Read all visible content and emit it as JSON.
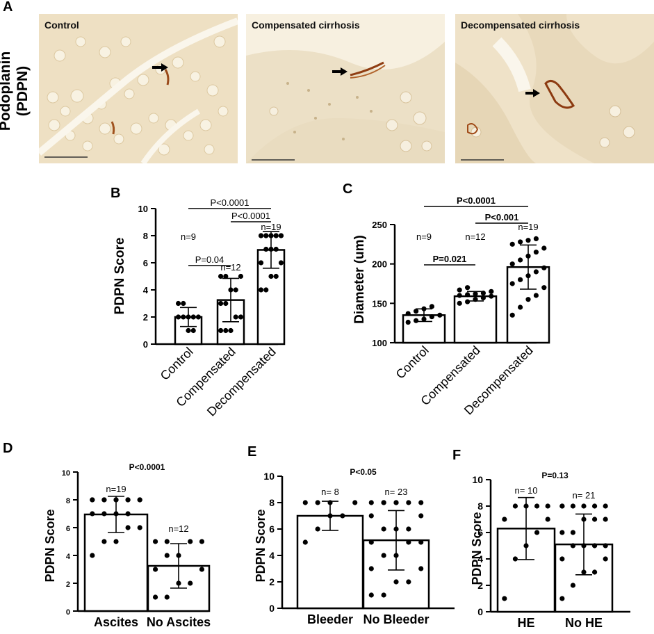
{
  "figure": {
    "panel_letters": {
      "A": "A",
      "B": "B",
      "C": "C",
      "D": "D",
      "E": "E",
      "F": "F"
    },
    "row_label_line1": "Podoplanin",
    "row_label_line2": "(PDPN)",
    "micrographs": [
      {
        "label": "Control",
        "arrow": "right-arrow-icon"
      },
      {
        "label": "Compensated cirrhosis",
        "arrow": "right-arrow-icon"
      },
      {
        "label": "Decompensated cirrhosis",
        "arrow": "right-arrow-icon"
      }
    ]
  },
  "chart_data": [
    {
      "panel": "B",
      "type": "bar",
      "categories": [
        "Control",
        "Compensated",
        "Decompensated"
      ],
      "values": [
        2.0,
        3.25,
        6.95
      ],
      "sd": [
        0.7,
        1.6,
        1.35
      ],
      "ylabel": "PDPN Score",
      "ylim": [
        0,
        10
      ],
      "yticks": [
        0,
        2,
        4,
        6,
        8,
        10
      ],
      "n_labels": [
        "n=9",
        "n=12",
        "n=19"
      ],
      "points": [
        [
          2,
          2,
          2,
          2,
          2,
          3,
          3,
          1,
          1
        ],
        [
          1,
          1,
          1,
          2,
          2,
          3,
          3,
          4,
          4,
          5,
          5,
          5
        ],
        [
          4,
          4,
          5,
          5,
          6,
          6,
          7,
          7,
          7,
          8,
          8,
          8,
          8,
          8,
          8,
          8,
          8,
          8,
          8
        ]
      ],
      "comparisons": [
        {
          "from": 0,
          "to": 1,
          "label": "P=0.04"
        },
        {
          "from": 1,
          "to": 2,
          "label": "P<0.0001"
        },
        {
          "from": 0,
          "to": 2,
          "label": "P<0.0001"
        }
      ],
      "bold_p": false,
      "rotate_xticks": true
    },
    {
      "panel": "C",
      "type": "bar",
      "categories": [
        "Control",
        "Compensated",
        "Decompensated"
      ],
      "values": [
        135,
        159,
        196
      ],
      "sd": [
        8,
        6,
        28
      ],
      "ylabel": "Diameter (um)",
      "ylim": [
        100,
        250
      ],
      "yticks": [
        100,
        150,
        200,
        250
      ],
      "n_labels": [
        "n=9",
        "n=12",
        "n=19"
      ],
      "points": [
        [
          126,
          128,
          130,
          133,
          135,
          137,
          140,
          143,
          146
        ],
        [
          150,
          152,
          155,
          157,
          159,
          160,
          161,
          162,
          163,
          165,
          167,
          170
        ],
        [
          135,
          145,
          155,
          160,
          170,
          175,
          180,
          185,
          190,
          195,
          200,
          205,
          210,
          215,
          220,
          225,
          228,
          230,
          232
        ]
      ],
      "comparisons": [
        {
          "from": 0,
          "to": 1,
          "label": "P=0.021"
        },
        {
          "from": 1,
          "to": 2,
          "label": "P<0.001"
        },
        {
          "from": 0,
          "to": 2,
          "label": "P<0.0001"
        }
      ],
      "bold_p": true,
      "rotate_xticks": true
    },
    {
      "panel": "D",
      "type": "bar",
      "categories": [
        "Ascites",
        "No Ascites"
      ],
      "values": [
        6.95,
        3.25
      ],
      "sd": [
        1.3,
        1.6
      ],
      "ylabel": "PDPN Score",
      "ylim": [
        0,
        10
      ],
      "yticks": [
        0,
        2,
        4,
        6,
        8,
        10
      ],
      "n_labels": [
        "n=19",
        "n=12"
      ],
      "points": [
        [
          4,
          5,
          5,
          6,
          6,
          7,
          7,
          7,
          7,
          8,
          8,
          8,
          8,
          8,
          8,
          8,
          8,
          8,
          8
        ],
        [
          1,
          1,
          2,
          2,
          3,
          3,
          4,
          4,
          5,
          5,
          5,
          5
        ]
      ],
      "p_value": "P<0.0001",
      "bold_p": true,
      "rotate_xticks": false
    },
    {
      "panel": "E",
      "type": "bar",
      "categories": [
        "Bleeder",
        "No Bleeder"
      ],
      "values": [
        7.0,
        5.15
      ],
      "sd": [
        1.1,
        2.25
      ],
      "ylabel": "PDPN Score",
      "ylim": [
        0,
        10
      ],
      "yticks": [
        0,
        2,
        4,
        6,
        8,
        10
      ],
      "n_labels": [
        "n= 8",
        "n= 23"
      ],
      "points": [
        [
          5,
          6,
          7,
          7,
          8,
          8,
          8,
          8
        ],
        [
          1,
          1,
          2,
          2,
          3,
          3,
          4,
          4,
          5,
          5,
          5,
          6,
          6,
          6,
          7,
          7,
          8,
          8,
          8,
          8,
          8,
          8,
          8
        ]
      ],
      "p_value": "P<0.05",
      "bold_p": true,
      "rotate_xticks": false
    },
    {
      "panel": "F",
      "type": "bar",
      "categories": [
        "HE",
        "No HE"
      ],
      "values": [
        6.3,
        5.1
      ],
      "sd": [
        2.35,
        2.3
      ],
      "ylabel": "PDPN Score",
      "ylim": [
        0,
        10
      ],
      "yticks": [
        0,
        2,
        4,
        6,
        8,
        10
      ],
      "n_labels": [
        "n= 10",
        "n= 21"
      ],
      "points": [
        [
          1,
          4,
          5,
          6,
          7,
          7,
          8,
          8,
          8,
          8
        ],
        [
          1,
          2,
          3,
          3,
          4,
          4,
          5,
          5,
          5,
          5,
          6,
          6,
          7,
          7,
          7,
          8,
          8,
          8,
          8,
          8,
          8
        ]
      ],
      "p_value": "P=0.13",
      "bold_p": true,
      "rotate_xticks": false
    }
  ]
}
